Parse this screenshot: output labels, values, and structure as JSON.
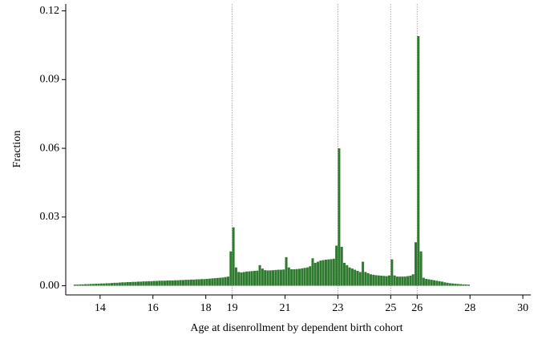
{
  "chart_data": {
    "type": "histogram",
    "xlabel": "Age at disenrollment by dependent birth cohort",
    "ylabel": "Fraction",
    "color": "#2e7a2e",
    "bins": [
      13,
      13.1,
      13.2,
      13.3,
      13.4,
      13.5,
      13.6,
      13.7,
      13.8,
      13.9,
      14,
      14.1,
      14.2,
      14.3,
      14.4,
      14.5,
      14.6,
      14.7,
      14.8,
      14.9,
      15,
      15.1,
      15.2,
      15.3,
      15.4,
      15.5,
      15.6,
      15.7,
      15.8,
      15.9,
      16,
      16.1,
      16.2,
      16.3,
      16.4,
      16.5,
      16.6,
      16.7,
      16.8,
      16.9,
      17,
      17.1,
      17.2,
      17.3,
      17.4,
      17.5,
      17.6,
      17.7,
      17.8,
      17.9,
      18,
      18.1,
      18.2,
      18.3,
      18.4,
      18.5,
      18.6,
      18.7,
      18.8,
      18.9,
      19,
      19.1,
      19.2,
      19.3,
      19.4,
      19.5,
      19.6,
      19.7,
      19.8,
      19.9,
      20,
      20.1,
      20.2,
      20.3,
      20.4,
      20.5,
      20.6,
      20.7,
      20.8,
      20.9,
      21,
      21.1,
      21.2,
      21.3,
      21.4,
      21.5,
      21.6,
      21.7,
      21.8,
      21.9,
      22,
      22.1,
      22.2,
      22.3,
      22.4,
      22.5,
      22.6,
      22.7,
      22.8,
      22.9,
      23,
      23.1,
      23.2,
      23.3,
      23.4,
      23.5,
      23.6,
      23.7,
      23.8,
      23.9,
      24,
      24.1,
      24.2,
      24.3,
      24.4,
      24.5,
      24.6,
      24.7,
      24.8,
      24.9,
      25,
      25.1,
      25.2,
      25.3,
      25.4,
      25.5,
      25.6,
      25.7,
      25.8,
      25.9,
      26,
      26.1,
      26.2,
      26.3,
      26.4,
      26.5,
      26.6,
      26.7,
      26.8,
      26.9,
      27,
      27.1,
      27.2,
      27.3,
      27.4,
      27.5,
      27.6,
      27.7,
      27.8,
      27.9,
      28
    ],
    "values": [
      0.0005,
      0.0005,
      0.0006,
      0.0006,
      0.0007,
      0.0007,
      0.0008,
      0.0008,
      0.0009,
      0.0009,
      0.001,
      0.001,
      0.0011,
      0.0011,
      0.0012,
      0.0013,
      0.0013,
      0.0014,
      0.0015,
      0.0015,
      0.0016,
      0.0016,
      0.0017,
      0.0017,
      0.0018,
      0.0018,
      0.0019,
      0.0019,
      0.002,
      0.002,
      0.0021,
      0.0021,
      0.0022,
      0.0022,
      0.0022,
      0.0023,
      0.0023,
      0.0023,
      0.0024,
      0.0024,
      0.0025,
      0.0025,
      0.0026,
      0.0026,
      0.0027,
      0.0027,
      0.0028,
      0.0028,
      0.0029,
      0.0029,
      0.003,
      0.0031,
      0.0032,
      0.0033,
      0.0034,
      0.0035,
      0.0036,
      0.0038,
      0.004,
      0.015,
      0.0255,
      0.008,
      0.006,
      0.0058,
      0.006,
      0.0062,
      0.0063,
      0.0064,
      0.0065,
      0.0066,
      0.009,
      0.0075,
      0.0068,
      0.0067,
      0.0067,
      0.0068,
      0.0069,
      0.007,
      0.007,
      0.0071,
      0.0125,
      0.008,
      0.0072,
      0.0072,
      0.0073,
      0.0074,
      0.0076,
      0.0078,
      0.008,
      0.0085,
      0.012,
      0.01,
      0.0105,
      0.011,
      0.0112,
      0.0114,
      0.0115,
      0.0116,
      0.0118,
      0.0175,
      0.06,
      0.017,
      0.01,
      0.009,
      0.008,
      0.0075,
      0.007,
      0.0065,
      0.006,
      0.0105,
      0.006,
      0.0055,
      0.005,
      0.0048,
      0.0046,
      0.0045,
      0.0044,
      0.0043,
      0.0042,
      0.0045,
      0.0115,
      0.0045,
      0.004,
      0.004,
      0.004,
      0.004,
      0.0042,
      0.0044,
      0.005,
      0.019,
      0.109,
      0.015,
      0.0035,
      0.003,
      0.0028,
      0.0026,
      0.0024,
      0.0022,
      0.002,
      0.0018,
      0.0015,
      0.0013,
      0.0011,
      0.001,
      0.0009,
      0.0008,
      0.0007,
      0.0006,
      0.0006,
      0.0005
    ],
    "xlim": [
      12.7,
      30.3
    ],
    "ylim": [
      -0.004,
      0.123
    ],
    "xticks": [
      14,
      16,
      18,
      19,
      21,
      23,
      25,
      26,
      28,
      30
    ],
    "yticks": [
      {
        "value": 0,
        "label": "0.00"
      },
      0.03,
      0.06,
      0.09,
      0.12
    ],
    "vlines": [
      19,
      23,
      25,
      26
    ],
    "grid": false
  }
}
